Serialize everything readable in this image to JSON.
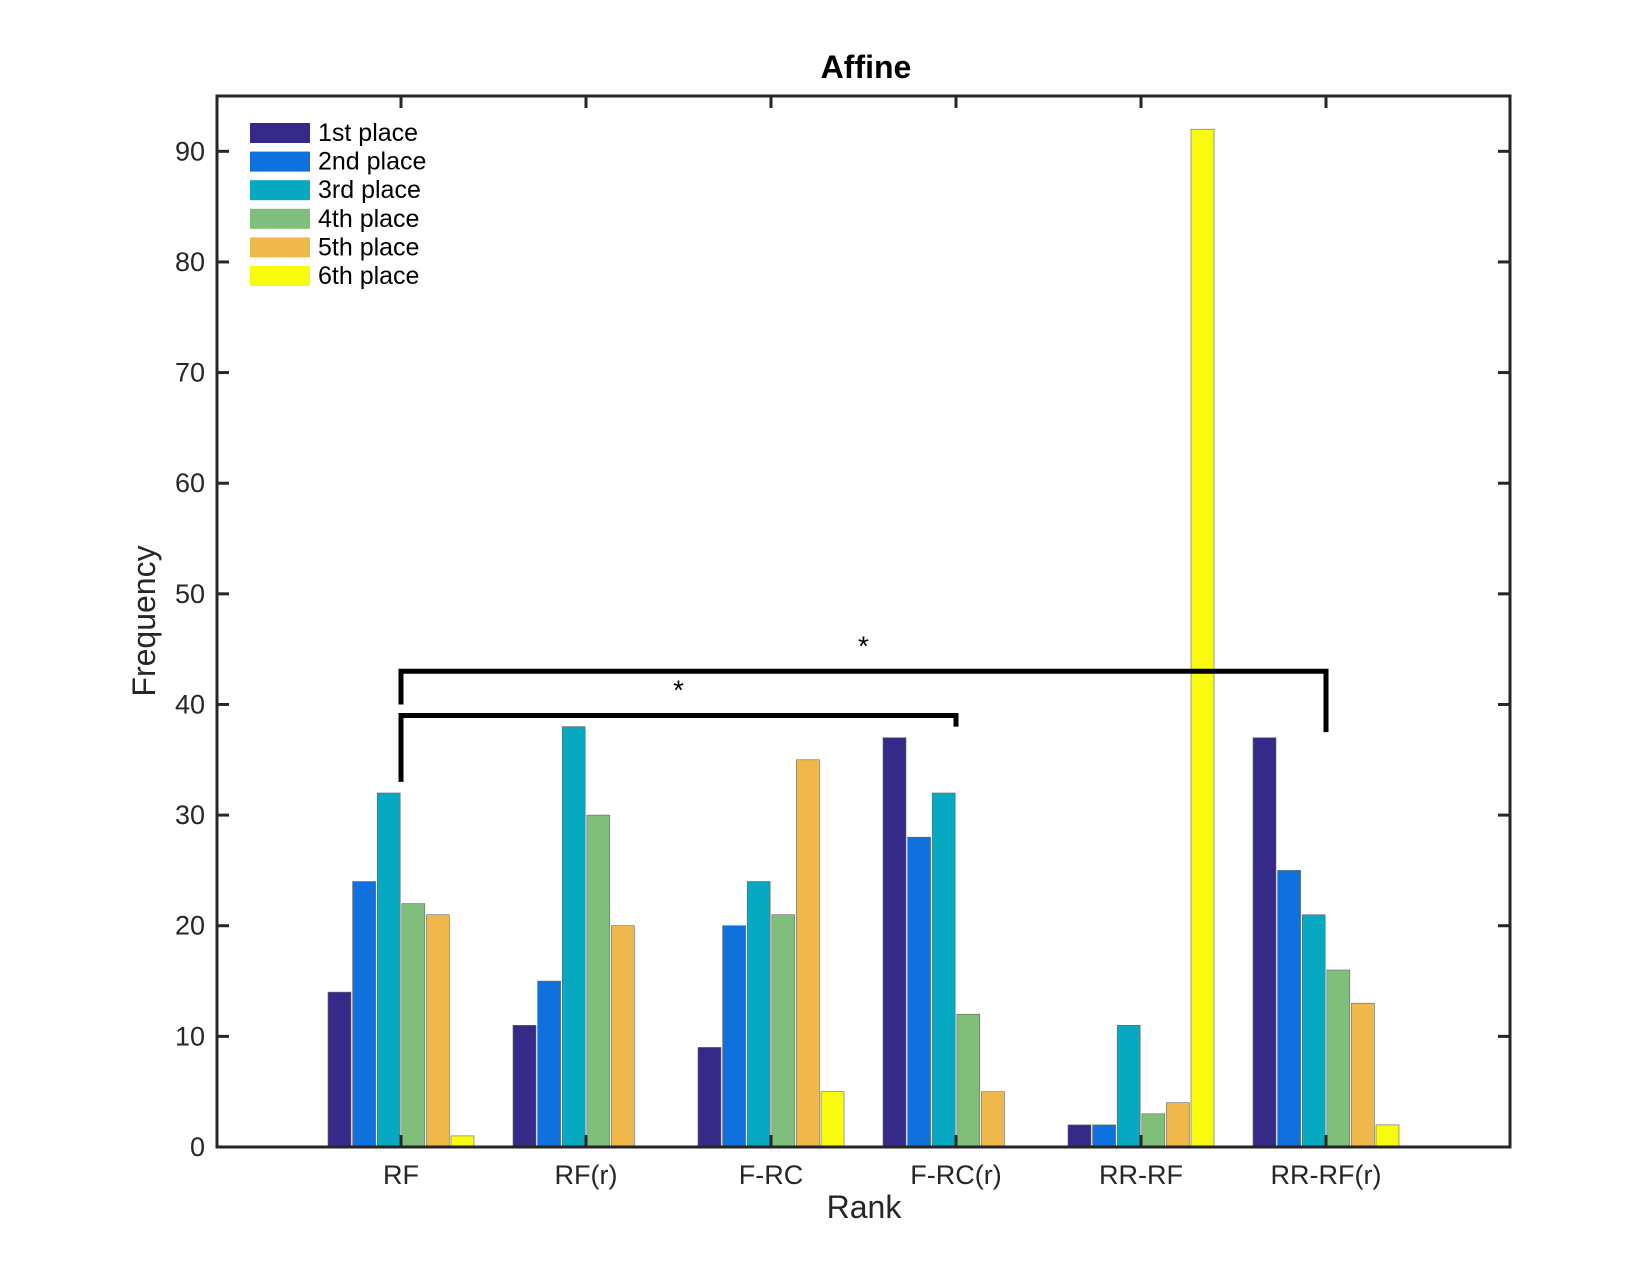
{
  "chart_data": {
    "type": "bar",
    "title": "Affine",
    "xlabel": "Rank",
    "ylabel": "Frequency",
    "categories": [
      "RF",
      "RF(r)",
      "F-RC",
      "F-RC(r)",
      "RR-RF",
      "RR-RF(r)"
    ],
    "ylim": [
      0,
      95
    ],
    "yticks": [
      0,
      10,
      20,
      30,
      40,
      50,
      60,
      70,
      80,
      90
    ],
    "grid": false,
    "legend_position": "top-left",
    "series": [
      {
        "name": "1st place",
        "color": "#352A87",
        "values": [
          14,
          11,
          9,
          37,
          2,
          37
        ]
      },
      {
        "name": "2nd place",
        "color": "#0F71DD",
        "values": [
          24,
          15,
          20,
          28,
          2,
          25
        ]
      },
      {
        "name": "3rd place",
        "color": "#07A9C2",
        "values": [
          32,
          38,
          24,
          32,
          11,
          21
        ]
      },
      {
        "name": "4th place",
        "color": "#7FBF7B",
        "values": [
          22,
          30,
          21,
          12,
          3,
          16
        ]
      },
      {
        "name": "5th place",
        "color": "#F0B84A",
        "values": [
          21,
          20,
          35,
          5,
          4,
          13
        ]
      },
      {
        "name": "6th place",
        "color": "#F9FB0E",
        "values": [
          1,
          0,
          5,
          0,
          92,
          2
        ]
      }
    ],
    "annotations": [
      {
        "type": "significance",
        "label": "*",
        "from": "RF",
        "to": "F-RC(r)",
        "level": 39,
        "drop_from": 33,
        "drop_to": 38
      },
      {
        "type": "significance",
        "label": "*",
        "from": "RF",
        "to": "RR-RF(r)",
        "level": 43,
        "drop_from": 40,
        "drop_to": 37.5
      }
    ]
  }
}
